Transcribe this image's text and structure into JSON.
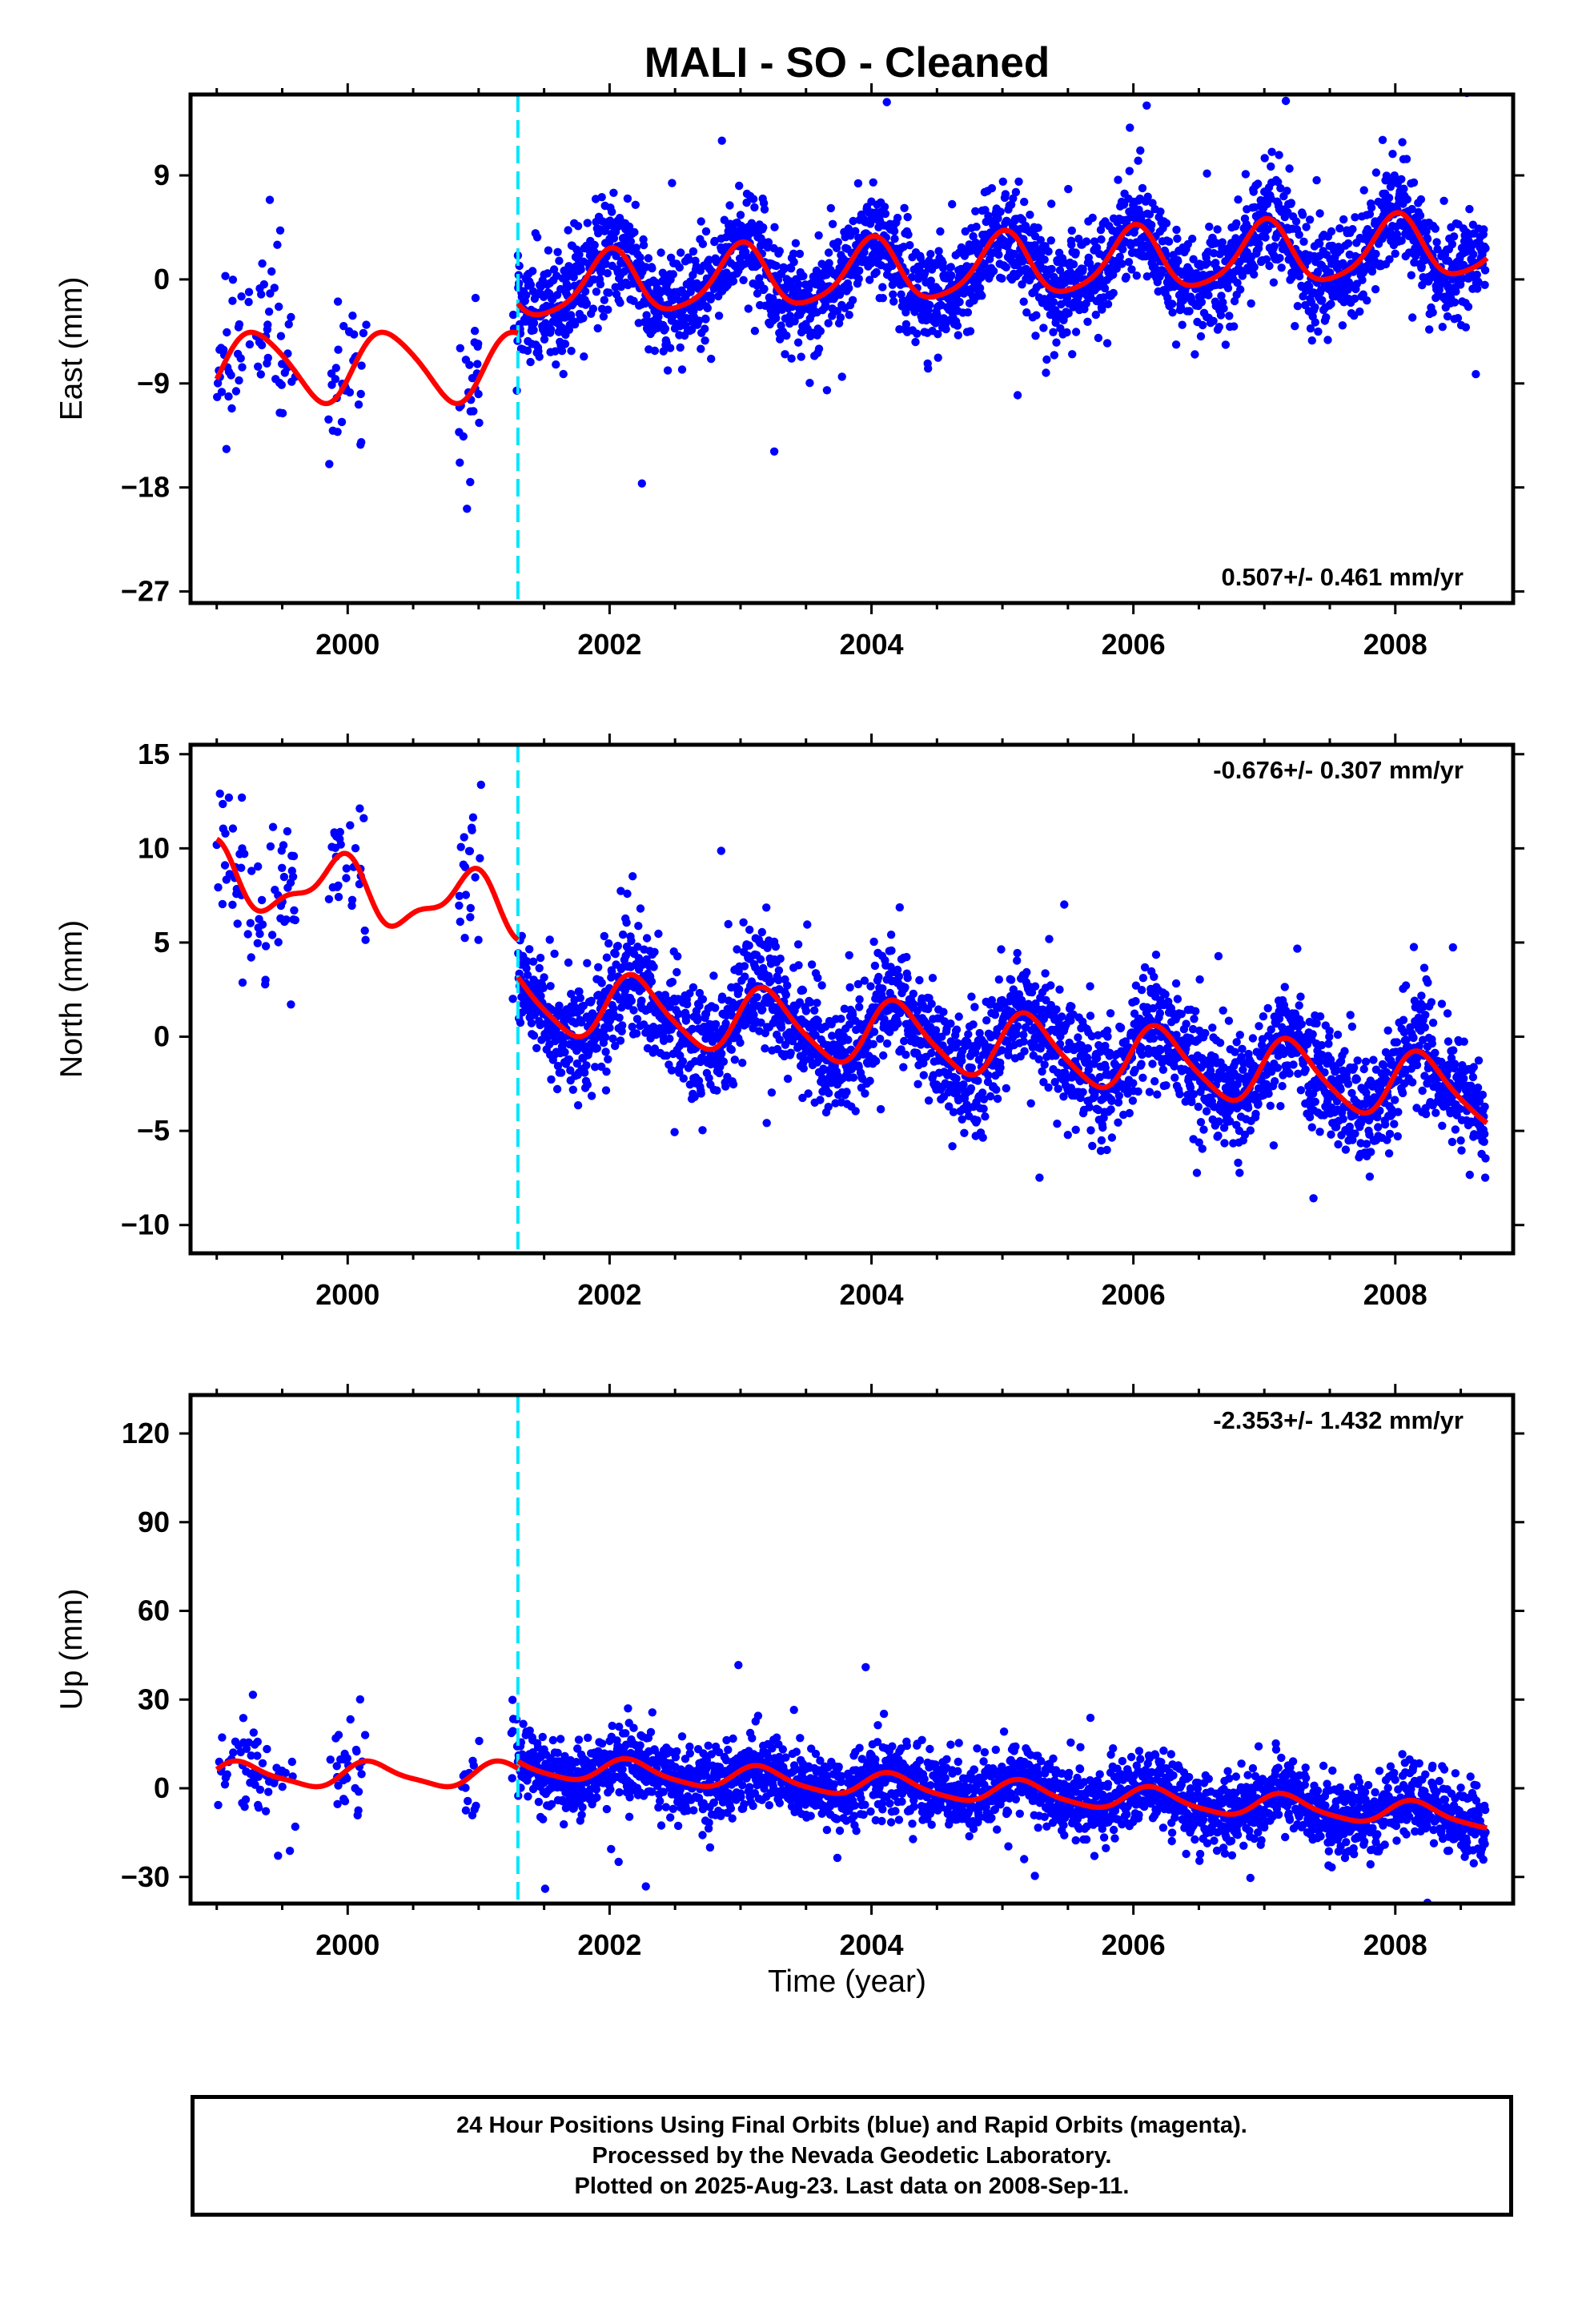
{
  "title": "MALI  - SO - Cleaned",
  "xlabel": "Time (year)",
  "colors": {
    "points": "#0000ff",
    "fit": "#ff0000",
    "offset_line": "#00e5ff",
    "frame": "#000000"
  },
  "footer": {
    "line1": "24 Hour Positions Using Final Orbits (blue) and Rapid Orbits (magenta).",
    "line2": "Processed by the Nevada Geodetic Laboratory.",
    "line3": "Plotted on 2025-Aug-23. Last data on 2008-Sep-11."
  },
  "chart_data": [
    {
      "type": "scatter",
      "panel": "east",
      "ylabel": "East (mm)",
      "xlim": [
        1998.8,
        2008.9
      ],
      "ylim": [
        -28,
        16
      ],
      "xticks": [
        2000,
        2002,
        2004,
        2006,
        2008
      ],
      "yticks": [
        -27,
        -18,
        -9,
        0,
        9
      ],
      "grid": false,
      "rate_label": "0.507+/- 0.461 mm/yr",
      "rate_label_position": "bottom-right",
      "offset_epoch": 2001.3,
      "fit": {
        "pre": {
          "level": -7.5,
          "amp1": 3.0,
          "amp2": 0.4,
          "phase": -0.35,
          "rate": 0
        },
        "post": {
          "level": -0.8,
          "amp1": 2.7,
          "amp2": 0.5,
          "phase": 1.55,
          "rate": 0.507
        }
      },
      "scatter_std": {
        "pre": 5.0,
        "post": 3.0
      },
      "series": [
        {
          "name": "Final Orbits",
          "kind": "points"
        },
        {
          "name": "Model fit",
          "kind": "line"
        }
      ]
    },
    {
      "type": "scatter",
      "panel": "north",
      "ylabel": "North (mm)",
      "xlim": [
        1998.8,
        2008.9
      ],
      "ylim": [
        -11.5,
        15.5
      ],
      "xticks": [
        2000,
        2002,
        2004,
        2006,
        2008
      ],
      "yticks": [
        -10,
        -5,
        0,
        5,
        10,
        15
      ],
      "grid": false,
      "rate_label": "-0.676+/- 0.307 mm/yr",
      "rate_label_position": "top-right",
      "offset_epoch": 2001.3,
      "fit": {
        "pre": {
          "level": 6.7,
          "amp1": 1.5,
          "amp2": 0.6,
          "phase": 2.0,
          "rate": -0.8
        },
        "post": {
          "level": 2.0,
          "amp1": 1.7,
          "amp2": 0.3,
          "phase": 0.3,
          "rate": -0.676
        }
      },
      "scatter_std": {
        "pre": 2.6,
        "post": 2.0
      },
      "series": [
        {
          "name": "Final Orbits",
          "kind": "points"
        },
        {
          "name": "Model fit",
          "kind": "line"
        }
      ]
    },
    {
      "type": "scatter",
      "panel": "up",
      "ylabel": "Up (mm)",
      "xlim": [
        1998.8,
        2008.9
      ],
      "ylim": [
        -39,
        133
      ],
      "xticks": [
        2000,
        2002,
        2004,
        2006,
        2008
      ],
      "yticks": [
        -30,
        0,
        30,
        60,
        90,
        120
      ],
      "grid": false,
      "rate_label": "-2.353+/- 1.432 mm/yr",
      "rate_label_position": "top-right",
      "offset_epoch": 2001.3,
      "fit": {
        "pre": {
          "level": 4.5,
          "amp1": 4.0,
          "amp2": 1.0,
          "phase": 0.4,
          "rate": 0
        },
        "post": {
          "level": 7.5,
          "amp1": 3.8,
          "amp2": 0.8,
          "phase": 0.6,
          "rate": -2.353
        }
      },
      "scatter_std": {
        "pre": 11.0,
        "post": 8.0
      },
      "series": [
        {
          "name": "Final Orbits",
          "kind": "points"
        },
        {
          "name": "Model fit",
          "kind": "line"
        }
      ]
    }
  ]
}
